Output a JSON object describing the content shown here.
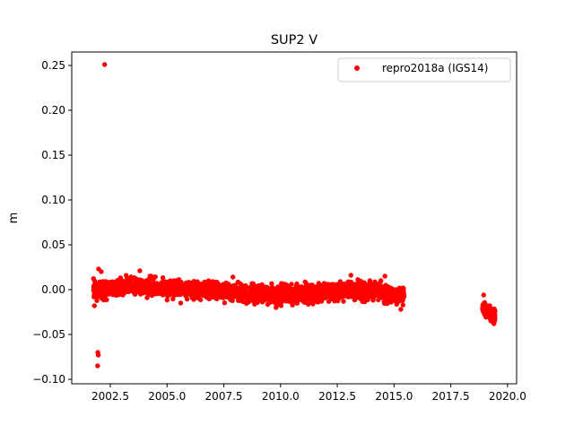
{
  "chart_data": {
    "type": "scatter",
    "title": "SUP2 V",
    "xlabel": "",
    "ylabel": "m",
    "xlim": [
      2000.8,
      2020.4
    ],
    "ylim": [
      -0.105,
      0.265
    ],
    "xticks": [
      2002.5,
      2005.0,
      2007.5,
      2010.0,
      2012.5,
      2015.0,
      2017.5,
      2020.0
    ],
    "xtick_labels": [
      "2002.5",
      "2005.0",
      "2007.5",
      "2010.0",
      "2012.5",
      "2015.0",
      "2017.5",
      "2020.0"
    ],
    "yticks": [
      -0.1,
      -0.05,
      0.0,
      0.05,
      0.1,
      0.15,
      0.2,
      0.25
    ],
    "ytick_labels": [
      "−0.10",
      "−0.05",
      "0.00",
      "0.05",
      "0.10",
      "0.15",
      "0.20",
      "0.25"
    ],
    "grid": false,
    "legend": {
      "position": "top-right",
      "entries": [
        "repro2018a (IGS14)"
      ]
    },
    "series": [
      {
        "name": "repro2018a (IGS14)",
        "color": "#ff0000",
        "marker": "circle",
        "points": [
          [
            2002.25,
            0.251
          ],
          [
            2001.95,
            -0.07
          ],
          [
            2001.97,
            -0.073
          ],
          [
            2001.94,
            -0.085
          ],
          [
            2001.98,
            0.023
          ],
          [
            2002.1,
            0.02
          ],
          [
            2001.8,
            -0.018
          ],
          [
            2003.8,
            0.021
          ],
          [
            2004.3,
            0.015
          ],
          [
            2005.6,
            -0.015
          ],
          [
            2007.9,
            0.014
          ],
          [
            2009.8,
            -0.02
          ],
          [
            2013.1,
            0.016
          ],
          [
            2014.6,
            0.015
          ],
          [
            2015.3,
            -0.022
          ],
          [
            2018.95,
            -0.006
          ],
          [
            2019.4,
            -0.038
          ]
        ],
        "bands": [
          {
            "x_start": 2001.75,
            "x_end": 2015.45,
            "y_center": [
              [
                2001.75,
                0.0
              ],
              [
                2003.5,
                0.004
              ],
              [
                2005.0,
                0.001
              ],
              [
                2007.0,
                -0.001
              ],
              [
                2009.5,
                -0.006
              ],
              [
                2011.0,
                -0.004
              ],
              [
                2013.0,
                -0.001
              ],
              [
                2014.3,
                -0.002
              ],
              [
                2015.45,
                -0.008
              ]
            ],
            "spread": 0.009,
            "count": 2600
          },
          {
            "x_start": 2018.9,
            "x_end": 2019.45,
            "y_center": [
              [
                2018.9,
                -0.02
              ],
              [
                2019.45,
                -0.03
              ]
            ],
            "spread": 0.006,
            "count": 180
          }
        ]
      }
    ]
  }
}
